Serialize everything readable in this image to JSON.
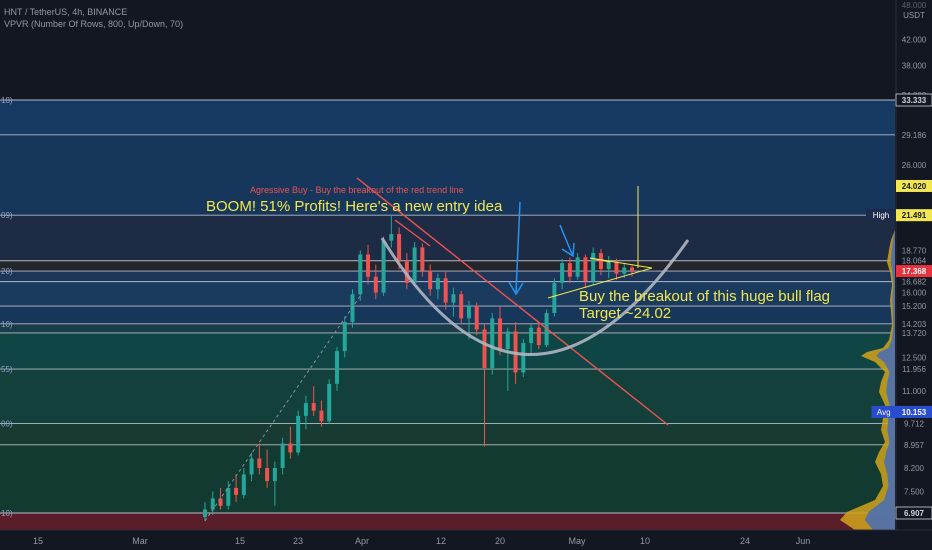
{
  "header": {
    "symbol_line": "HNT / TetherUS, 4h, BINANCE",
    "indicator_line": "VPVR (Number Of Rows, 800, Up/Down, 70)",
    "currency_top": "48.000",
    "currency": "USDT"
  },
  "colors": {
    "background": "#131722",
    "candle_up": "#26a69a",
    "candle_down": "#ef5350",
    "yellow_text": "#f2e750",
    "red_trendline": "#ef5350",
    "cup_arc": "#b0b6c2",
    "arrow_blue": "#2196f3",
    "fib_line": "#d1d4dc",
    "volume_up": "#4c6fb0",
    "volume_down": "#d1a51a",
    "avg_label": "#2a4dd0",
    "last_price": "#e8323e"
  },
  "chart_data": {
    "type": "candlestick",
    "title": "HNT / TetherUS, 4h, BINANCE",
    "y_scale": "log",
    "ylim": [
      6.7,
      48
    ],
    "x_tick_labels": [
      "15",
      "Mar",
      "15",
      "23",
      "Apr",
      "12",
      "20",
      "May",
      "10",
      "24",
      "Jun"
    ],
    "y_tick_labels": [
      "42.000",
      "38.000",
      "34.000",
      "29.186",
      "26.000",
      "24.020",
      "21.489",
      "18.770",
      "18.064",
      "17.450",
      "16.682",
      "16.000",
      "15.200",
      "14.203",
      "13.720",
      "12.500",
      "11.956",
      "11.000",
      "9.712",
      "8.957",
      "8.200",
      "7.500",
      "6.907"
    ],
    "price_labels": [
      {
        "value": 33.333,
        "text": "33.333",
        "style": "boxed"
      },
      {
        "value": 24.02,
        "text": "24.020",
        "style": "yellow"
      },
      {
        "value": 21.5,
        "text": "21.500",
        "tag": "High",
        "style": "navy"
      },
      {
        "value": 21.491,
        "text": "21.491",
        "style": "yellow"
      },
      {
        "value": 17.368,
        "text": "17.368",
        "style": "red"
      },
      {
        "value": 10.153,
        "text": "10.153",
        "tag": "Avg",
        "style": "blue"
      },
      {
        "value": 6.907,
        "text": "6.907",
        "style": "boxed"
      }
    ],
    "fib_levels": [
      {
        "value": 33.333,
        "label": "18)",
        "zone": "#173a63"
      },
      {
        "value": 29.186,
        "label": "",
        "zone": "#16365c"
      },
      {
        "value": 21.489,
        "label": "09)",
        "zone": "#1d2b44"
      },
      {
        "value": 18.064,
        "label": "",
        "zone": "#23262d"
      },
      {
        "value": 17.368,
        "label": "20)",
        "zone": "#1d3558"
      },
      {
        "value": 16.682,
        "label": "",
        "zone": "#1a3a5e"
      },
      {
        "value": 15.2,
        "label": "",
        "zone": "#16365a"
      },
      {
        "value": 14.203,
        "label": "10)",
        "zone": "#1a3d4a"
      },
      {
        "value": 13.72,
        "label": "",
        "zone": "#0f4545"
      },
      {
        "value": 11.956,
        "label": "55)",
        "zone": "#13403a"
      },
      {
        "value": 9.712,
        "label": "00)",
        "zone": "#173a33"
      },
      {
        "value": 8.957,
        "label": "",
        "zone": "#123a30"
      },
      {
        "value": 6.907,
        "label": "10)",
        "zone": "#5a1e2a"
      }
    ],
    "candles": [
      {
        "i": 0,
        "o": 6.8,
        "h": 7.2,
        "l": 6.7,
        "c": 7.0
      },
      {
        "i": 1,
        "o": 7.0,
        "h": 7.5,
        "l": 6.85,
        "c": 7.3
      },
      {
        "i": 2,
        "o": 7.3,
        "h": 7.6,
        "l": 7.0,
        "c": 7.1
      },
      {
        "i": 3,
        "o": 7.1,
        "h": 7.8,
        "l": 7.0,
        "c": 7.6
      },
      {
        "i": 4,
        "o": 7.6,
        "h": 8.0,
        "l": 7.2,
        "c": 7.4
      },
      {
        "i": 5,
        "o": 7.4,
        "h": 8.2,
        "l": 7.3,
        "c": 8.0
      },
      {
        "i": 6,
        "o": 8.0,
        "h": 8.7,
        "l": 7.8,
        "c": 8.5
      },
      {
        "i": 7,
        "o": 8.5,
        "h": 9.0,
        "l": 8.0,
        "c": 8.2
      },
      {
        "i": 8,
        "o": 8.2,
        "h": 8.8,
        "l": 7.6,
        "c": 7.8
      },
      {
        "i": 9,
        "o": 7.8,
        "h": 8.4,
        "l": 7.1,
        "c": 8.2
      },
      {
        "i": 10,
        "o": 8.2,
        "h": 9.2,
        "l": 8.0,
        "c": 9.0
      },
      {
        "i": 11,
        "o": 9.0,
        "h": 9.6,
        "l": 8.5,
        "c": 8.7
      },
      {
        "i": 12,
        "o": 8.7,
        "h": 10.2,
        "l": 8.6,
        "c": 10.0
      },
      {
        "i": 13,
        "o": 10.0,
        "h": 10.8,
        "l": 9.5,
        "c": 10.5
      },
      {
        "i": 14,
        "o": 10.5,
        "h": 11.2,
        "l": 10.0,
        "c": 10.2
      },
      {
        "i": 15,
        "o": 10.2,
        "h": 10.6,
        "l": 9.6,
        "c": 9.8
      },
      {
        "i": 16,
        "o": 9.8,
        "h": 11.5,
        "l": 9.7,
        "c": 11.3
      },
      {
        "i": 17,
        "o": 11.3,
        "h": 13.0,
        "l": 11.0,
        "c": 12.8
      },
      {
        "i": 18,
        "o": 12.8,
        "h": 14.6,
        "l": 12.5,
        "c": 14.3
      },
      {
        "i": 19,
        "o": 14.3,
        "h": 16.2,
        "l": 14.0,
        "c": 15.9
      },
      {
        "i": 20,
        "o": 15.9,
        "h": 18.8,
        "l": 15.5,
        "c": 18.5
      },
      {
        "i": 21,
        "o": 18.5,
        "h": 19.2,
        "l": 16.5,
        "c": 17.0
      },
      {
        "i": 22,
        "o": 17.0,
        "h": 17.8,
        "l": 15.6,
        "c": 16.0
      },
      {
        "i": 23,
        "o": 16.0,
        "h": 19.8,
        "l": 15.8,
        "c": 19.5
      },
      {
        "i": 24,
        "o": 19.5,
        "h": 21.5,
        "l": 19.0,
        "c": 20.0
      },
      {
        "i": 25,
        "o": 20.0,
        "h": 20.5,
        "l": 17.5,
        "c": 18.0
      },
      {
        "i": 26,
        "o": 18.0,
        "h": 18.6,
        "l": 16.2,
        "c": 16.6
      },
      {
        "i": 27,
        "o": 16.6,
        "h": 19.4,
        "l": 16.4,
        "c": 19.0
      },
      {
        "i": 28,
        "o": 19.0,
        "h": 19.3,
        "l": 17.0,
        "c": 17.4
      },
      {
        "i": 29,
        "o": 17.4,
        "h": 17.8,
        "l": 15.8,
        "c": 16.2
      },
      {
        "i": 30,
        "o": 16.2,
        "h": 17.2,
        "l": 15.6,
        "c": 16.9
      },
      {
        "i": 31,
        "o": 16.9,
        "h": 17.3,
        "l": 15.0,
        "c": 15.4
      },
      {
        "i": 32,
        "o": 15.4,
        "h": 16.3,
        "l": 14.6,
        "c": 15.9
      },
      {
        "i": 33,
        "o": 15.9,
        "h": 16.1,
        "l": 14.2,
        "c": 14.5
      },
      {
        "i": 34,
        "o": 14.5,
        "h": 15.5,
        "l": 13.4,
        "c": 15.2
      },
      {
        "i": 35,
        "o": 15.2,
        "h": 15.4,
        "l": 13.6,
        "c": 13.9
      },
      {
        "i": 36,
        "o": 13.9,
        "h": 14.2,
        "l": 8.9,
        "c": 12.0
      },
      {
        "i": 37,
        "o": 12.0,
        "h": 14.8,
        "l": 11.7,
        "c": 14.5
      },
      {
        "i": 38,
        "o": 14.5,
        "h": 15.2,
        "l": 12.6,
        "c": 12.9
      },
      {
        "i": 39,
        "o": 12.9,
        "h": 14.0,
        "l": 11.0,
        "c": 13.8
      },
      {
        "i": 40,
        "o": 13.8,
        "h": 14.3,
        "l": 11.3,
        "c": 11.8
      },
      {
        "i": 41,
        "o": 11.8,
        "h": 13.4,
        "l": 11.6,
        "c": 13.2
      },
      {
        "i": 42,
        "o": 13.2,
        "h": 14.2,
        "l": 12.6,
        "c": 14.0
      },
      {
        "i": 43,
        "o": 14.0,
        "h": 14.3,
        "l": 12.9,
        "c": 13.1
      },
      {
        "i": 44,
        "o": 13.1,
        "h": 15.0,
        "l": 13.0,
        "c": 14.8
      },
      {
        "i": 45,
        "o": 14.8,
        "h": 16.9,
        "l": 14.6,
        "c": 16.6
      },
      {
        "i": 46,
        "o": 16.6,
        "h": 18.2,
        "l": 16.2,
        "c": 17.9
      },
      {
        "i": 47,
        "o": 17.9,
        "h": 18.3,
        "l": 16.6,
        "c": 17.0
      },
      {
        "i": 48,
        "o": 17.0,
        "h": 18.6,
        "l": 16.8,
        "c": 18.3
      },
      {
        "i": 49,
        "o": 18.3,
        "h": 18.5,
        "l": 16.3,
        "c": 16.7
      },
      {
        "i": 50,
        "o": 16.7,
        "h": 19.0,
        "l": 16.5,
        "c": 18.6
      },
      {
        "i": 51,
        "o": 18.6,
        "h": 18.9,
        "l": 17.1,
        "c": 17.5
      },
      {
        "i": 52,
        "o": 17.5,
        "h": 18.4,
        "l": 16.9,
        "c": 18.0
      },
      {
        "i": 53,
        "o": 18.0,
        "h": 18.2,
        "l": 16.8,
        "c": 17.2
      },
      {
        "i": 54,
        "o": 17.2,
        "h": 17.9,
        "l": 16.9,
        "c": 17.6
      },
      {
        "i": 55,
        "o": 17.6,
        "h": 17.8,
        "l": 17.0,
        "c": 17.37
      }
    ],
    "annotations": [
      {
        "text": "Agressive Buy - Buy the breakout of the red trend line",
        "color": "#ef5350"
      },
      {
        "text": "BOOM! 51% Profits! Here's a new entry idea",
        "color": "#f2e750"
      },
      {
        "text": "Buy the breakout of this huge bull flag",
        "color": "#f2e750"
      },
      {
        "text": "Target ~24.02",
        "color": "#f2e750"
      }
    ]
  }
}
